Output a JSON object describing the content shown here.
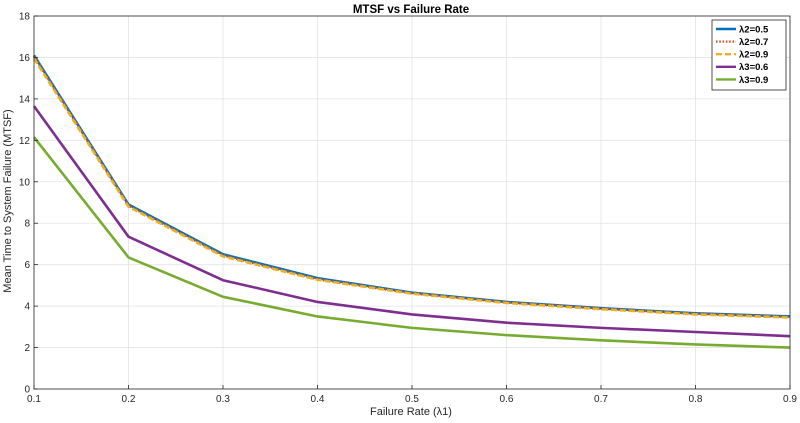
{
  "chart_data": {
    "type": "line",
    "title": "MTSF vs Failure Rate",
    "xlabel": "Failure Rate (λ1)",
    "ylabel": "Mean Time to System Failure (MTSF)",
    "xlim": [
      0.1,
      0.9
    ],
    "ylim": [
      0,
      18
    ],
    "x_ticks": [
      "0.1",
      "0.2",
      "0.3",
      "0.4",
      "0.5",
      "0.6",
      "0.7",
      "0.8",
      "0.9"
    ],
    "y_ticks": [
      "0",
      "2",
      "4",
      "6",
      "8",
      "10",
      "12",
      "14",
      "16",
      "18"
    ],
    "grid": true,
    "legend_position": "top-right",
    "x": [
      0.1,
      0.2,
      0.3,
      0.4,
      0.5,
      0.6,
      0.7,
      0.8,
      0.9
    ],
    "series": [
      {
        "name": "λ2=0.5",
        "color": "#0072BD",
        "dash": "solid",
        "values": [
          16.1,
          8.9,
          6.5,
          5.35,
          4.65,
          4.2,
          3.9,
          3.65,
          3.5
        ]
      },
      {
        "name": "λ2=0.7",
        "color": "#D95319",
        "dash": "dotted",
        "values": [
          16.05,
          8.85,
          6.45,
          5.3,
          4.62,
          4.18,
          3.88,
          3.63,
          3.48
        ]
      },
      {
        "name": "λ2=0.9",
        "color": "#EDB120",
        "dash": "dashed",
        "values": [
          15.95,
          8.8,
          6.4,
          5.27,
          4.6,
          4.15,
          3.85,
          3.6,
          3.45
        ]
      },
      {
        "name": "λ3=0.6",
        "color": "#7E2F8E",
        "dash": "solid",
        "values": [
          13.65,
          7.35,
          5.25,
          4.2,
          3.6,
          3.2,
          2.95,
          2.75,
          2.55
        ]
      },
      {
        "name": "λ3=0.9",
        "color": "#77AC30",
        "dash": "solid",
        "values": [
          12.15,
          6.35,
          4.45,
          3.5,
          2.95,
          2.6,
          2.35,
          2.15,
          2.0
        ]
      }
    ]
  }
}
